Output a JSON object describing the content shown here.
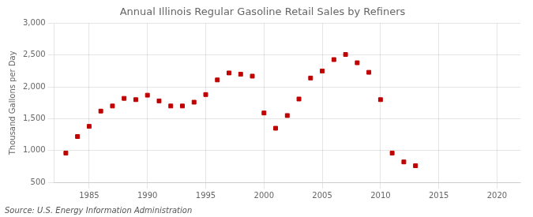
{
  "chart_data": {
    "type": "scatter",
    "title": "Annual Illinois Regular Gasoline Retail Sales by Refiners",
    "ylabel": "Thousand Gallons per Day",
    "annotations": [
      "Source: U.S. Energy Information Administration"
    ],
    "color": "#c00000",
    "marker": "square",
    "x": [
      1983,
      1984,
      1985,
      1986,
      1987,
      1988,
      1989,
      1990,
      1991,
      1992,
      1993,
      1994,
      1995,
      1996,
      1997,
      1998,
      1999,
      2000,
      2001,
      2002,
      2003,
      2004,
      2005,
      2006,
      2007,
      2008,
      2009,
      2010,
      2011,
      2012,
      2013
    ],
    "values": [
      960,
      1220,
      1380,
      1620,
      1700,
      1820,
      1800,
      1870,
      1780,
      1700,
      1700,
      1760,
      1880,
      2110,
      2220,
      2200,
      2170,
      1590,
      1350,
      1550,
      1810,
      2140,
      2250,
      2430,
      2510,
      2380,
      2230,
      1800,
      960,
      820,
      760
    ],
    "xlim": [
      1982,
      2022
    ],
    "ylim": [
      500,
      3000
    ],
    "xticks": [
      1985,
      1990,
      1995,
      2000,
      2005,
      2010,
      2015,
      2020
    ],
    "yticks": [
      500,
      {
        "value": 1000,
        "label": "1,000"
      },
      {
        "value": 1500,
        "label": "1,500"
      },
      {
        "value": 2000,
        "label": "2,000"
      },
      {
        "value": 2500,
        "label": "2,500"
      },
      {
        "value": 3000,
        "label": "3,000"
      }
    ],
    "grid": true
  }
}
